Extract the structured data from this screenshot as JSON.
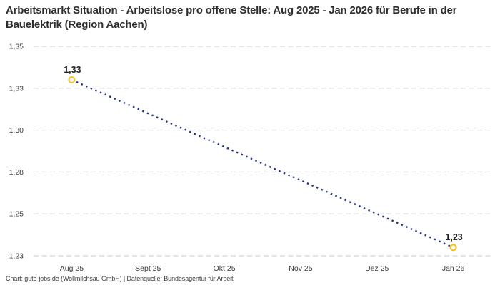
{
  "title": "Arbeitsmarkt Situation - Arbeitslose pro offene Stelle: Aug 2025 - Jan 2026 für Berufe in der Bauelektrik (Region Aachen)",
  "footer": "Chart: gute-jobs.de (Wollmilchsau GmbH) | Datenquelle: Bundesagentur für Arbeit",
  "chart_data": {
    "type": "line",
    "line_style": "dotted",
    "title": "Arbeitsmarkt Situation - Arbeitslose pro offene Stelle: Aug 2025 - Jan 2026 für Berufe in der Bauelektrik (Region Aachen)",
    "categories": [
      "Aug 25",
      "Sept 25",
      "Okt 25",
      "Nov 25",
      "Dez 25",
      "Jan 26"
    ],
    "series": [
      {
        "name": "Arbeitslose pro offene Stelle",
        "points": [
          {
            "x": "Aug 25",
            "value": 1.33,
            "label": "1,33"
          },
          {
            "x": "Jan 26",
            "value": 1.23,
            "label": "1,23"
          }
        ]
      }
    ],
    "y_ticks": [
      {
        "value": 1.35,
        "label": "1,35"
      },
      {
        "value": 1.325,
        "label": "1,33"
      },
      {
        "value": 1.3,
        "label": "1,30"
      },
      {
        "value": 1.275,
        "label": "1,28"
      },
      {
        "value": 1.25,
        "label": "1,25"
      },
      {
        "value": 1.225,
        "label": "1,23"
      }
    ],
    "ylim": [
      1.225,
      1.35
    ],
    "grid": "horizontal-dashed",
    "legend": "none",
    "colors": {
      "line": "#26328c",
      "marker_stroke": "#fbc02d",
      "marker_fill": "#ffffff",
      "grid": "#c9c9c9",
      "axis_text": "#3d3d3d",
      "value_label": "#222222",
      "title_text": "#2e2e2e",
      "background": "#ffffff"
    }
  }
}
